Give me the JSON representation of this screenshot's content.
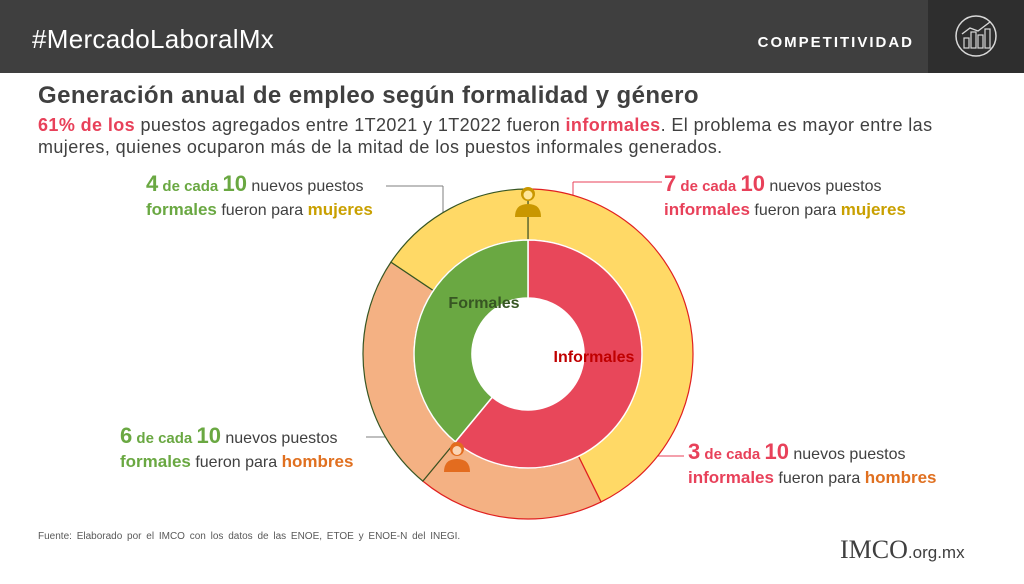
{
  "header": {
    "hashtag": "#MercadoLaboralMx",
    "section": "COMPETITIVIDAD"
  },
  "title": "Generación anual de empleo según formalidad y género",
  "subtitle": {
    "part1": "61% de los",
    "part2": " puestos agregados entre 1T2021 y 1T2022 fueron ",
    "part3": "informales",
    "part4": ". El problema es mayor entre las mujeres, quienes ocuparon más de la mitad de los puestos informales generados."
  },
  "callouts": {
    "formal_women": {
      "n": "4",
      "of": " de cada ",
      "ten": "10",
      "rest": " nuevos puestos",
      "cat": "formales",
      "mid": " fueron para ",
      "gender": "mujeres"
    },
    "informal_women": {
      "n": "7",
      "of": " de cada ",
      "ten": "10",
      "rest": " nuevos puestos",
      "cat": "informales",
      "mid": " fueron para ",
      "gender": "mujeres"
    },
    "formal_men": {
      "n": "6",
      "of": " de cada ",
      "ten": "10",
      "rest": " nuevos puestos",
      "cat": "formales",
      "mid": " fueron para ",
      "gender": "hombres"
    },
    "informal_men": {
      "n": "3",
      "of": " de cada ",
      "ten": "10",
      "rest": " nuevos puestos",
      "cat": "informales",
      "mid": " fueron para ",
      "gender": "hombres"
    }
  },
  "chart_data": {
    "type": "pie",
    "subtype": "nested-donut",
    "inner_ring": [
      {
        "label": "Informales",
        "value": 61,
        "color": "#e8475a"
      },
      {
        "label": "Formales",
        "value": 39,
        "color": "#6aa842"
      }
    ],
    "outer_ring": [
      {
        "group": "Informales",
        "gender": "mujeres",
        "value": 42.7,
        "color": "#ffd966"
      },
      {
        "group": "Informales",
        "gender": "hombres",
        "value": 18.3,
        "color": "#f4b183"
      },
      {
        "group": "Formales",
        "gender": "hombres",
        "value": 23.4,
        "color": "#f4b183"
      },
      {
        "group": "Formales",
        "gender": "mujeres",
        "value": 15.6,
        "color": "#ffd966"
      }
    ],
    "icons": [
      "woman-icon",
      "man-icon"
    ]
  },
  "source": "Fuente:  Elaborado  por el IMCO con los datos de las ENOE,  ETOE  y ENOE-N  del INEGI.",
  "logo": {
    "text": "IMCO",
    "domain": ".org.mx"
  }
}
